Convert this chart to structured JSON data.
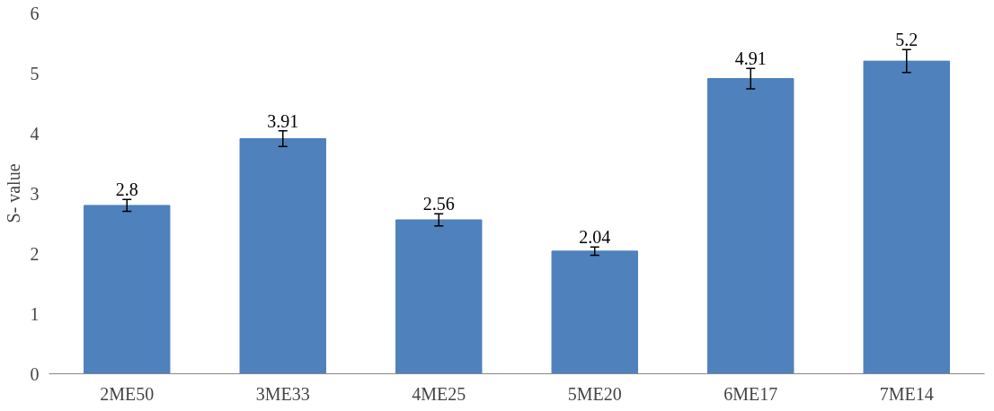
{
  "chart_data": {
    "type": "bar",
    "ylabel": "S- value",
    "categories": [
      "2ME50",
      "3ME33",
      "4ME25",
      "5ME20",
      "6ME17",
      "7ME14"
    ],
    "series": [
      {
        "color": "#4f81bd",
        "values": [
          2.8,
          3.91,
          2.56,
          2.04,
          4.91,
          5.2
        ],
        "errors": [
          0.1,
          0.13,
          0.1,
          0.07,
          0.17,
          0.19
        ]
      }
    ],
    "ylim": [
      0,
      6
    ],
    "yticks": [
      0,
      1,
      2,
      3,
      4,
      5,
      6
    ],
    "data_labels": true,
    "grid": false
  }
}
